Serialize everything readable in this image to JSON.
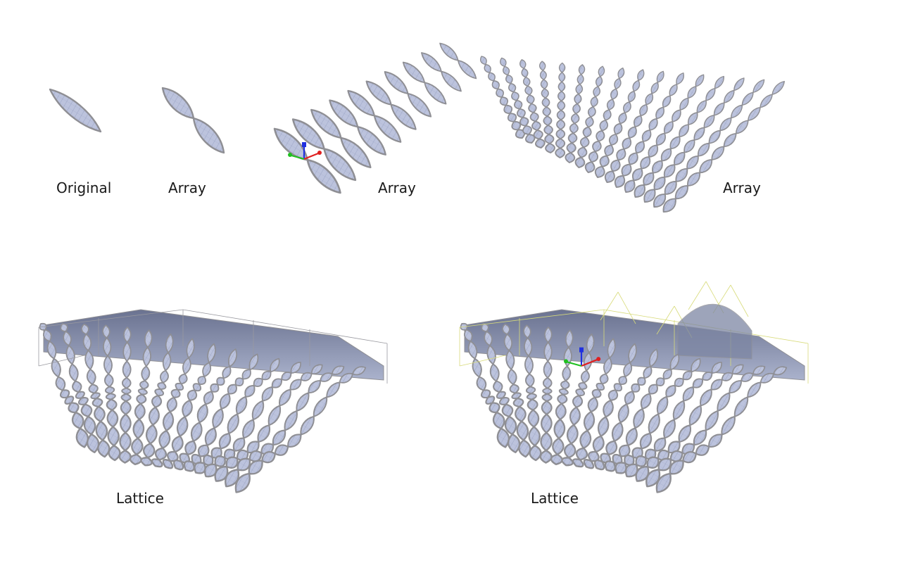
{
  "captions": [
    "Original",
    "Array",
    "Array",
    "Array",
    "Lattice",
    "Lattice"
  ],
  "panels": [
    {
      "name": "original",
      "stage": "original",
      "rows": 1,
      "cols": 1
    },
    {
      "name": "array-column",
      "stage": "array",
      "rows": 2,
      "cols": 1
    },
    {
      "name": "array-row",
      "stage": "array",
      "rows": 2,
      "cols": 10
    },
    {
      "name": "array-grid",
      "stage": "array",
      "rows": 10,
      "cols": 16
    },
    {
      "name": "lattice-box",
      "stage": "lattice",
      "rows": 10,
      "cols": 16
    },
    {
      "name": "lattice-deformed",
      "stage": "lattice",
      "rows": 10,
      "cols": 16
    }
  ],
  "colors": {
    "tile_fill": "#bcc3dd",
    "tile_edge": "#8f8f94",
    "tile_mesh": "#3a4a7a",
    "lattice_neutral": "#9a9aa0",
    "lattice_selected": "#d8db7a",
    "axis_x": "#e02020",
    "axis_y": "#20c020",
    "axis_z": "#2030e0"
  },
  "gizmo_icons": [
    "x-axis-arrow-icon",
    "y-axis-arrow-icon",
    "z-axis-arrow-icon"
  ]
}
